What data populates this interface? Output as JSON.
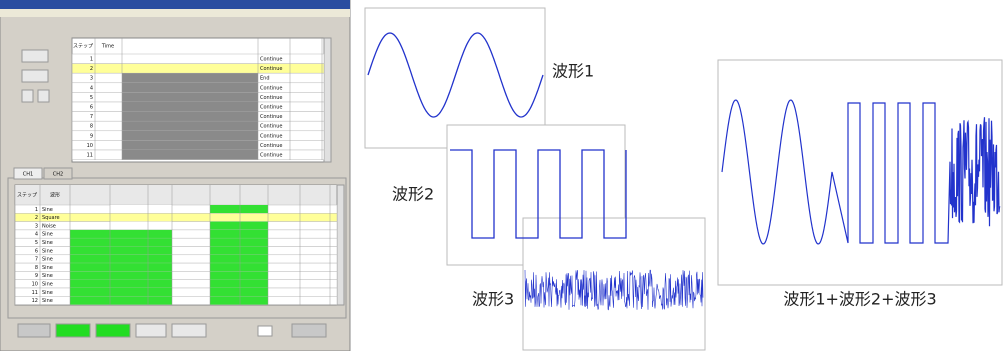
{
  "app": {
    "tabs": [
      "CH1",
      "CH2"
    ],
    "upper_table": {
      "header": [
        "ステップ",
        "Time"
      ],
      "rows": [
        [
          "1",
          "Continue"
        ],
        [
          "2",
          "Continue"
        ],
        [
          "3",
          "End"
        ],
        [
          "4",
          "Continue"
        ],
        [
          "5",
          "Continue"
        ],
        [
          "6",
          "Continue"
        ],
        [
          "7",
          "Continue"
        ],
        [
          "8",
          "Continue"
        ],
        [
          "9",
          "Continue"
        ],
        [
          "10",
          "Continue"
        ],
        [
          "11",
          "Continue"
        ]
      ]
    },
    "lower_table": {
      "header": [
        "ステップ",
        "波形"
      ],
      "rows": [
        [
          "1",
          "Sine"
        ],
        [
          "2",
          "Square"
        ],
        [
          "3",
          "Noise"
        ],
        [
          "4",
          "Sine"
        ],
        [
          "5",
          "Sine"
        ],
        [
          "6",
          "Sine"
        ],
        [
          "7",
          "Sine"
        ],
        [
          "8",
          "Sine"
        ],
        [
          "9",
          "Sine"
        ],
        [
          "10",
          "Sine"
        ],
        [
          "11",
          "Sine"
        ],
        [
          "12",
          "Sine"
        ]
      ]
    }
  },
  "waveforms": {
    "labels": [
      "波形1",
      "波形2",
      "波形3"
    ],
    "combined": "波形1+波形2+波形3"
  }
}
